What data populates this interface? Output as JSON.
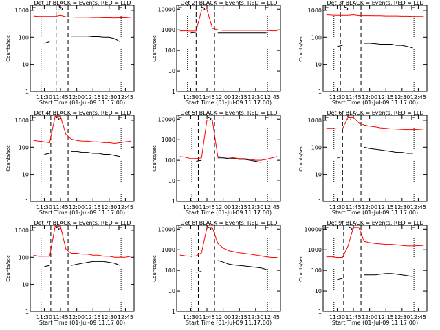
{
  "chart_data": [
    {
      "type": "line",
      "title": "Det 1f BLACK = Events, RED = LLD",
      "xlabel": "Start Time (01-Jul-09 11:17:00)",
      "ylabel": "Counts/sec",
      "log_y": true,
      "xlim": [
        "11:17",
        "12:53"
      ],
      "xticks": [
        "11:30",
        "11:45",
        "12:00",
        "12:15",
        "12:30",
        "12:45"
      ],
      "ylim": [
        1,
        1500
      ],
      "yticks": [
        1,
        10,
        100,
        1000
      ],
      "x": [
        "11:20",
        "11:25",
        "11:30",
        "11:35",
        "11:40",
        "11:45",
        "11:50",
        "11:55",
        "12:00",
        "12:05",
        "12:10",
        "12:15",
        "12:20",
        "12:25",
        "12:30",
        "12:35",
        "12:40",
        "12:45",
        "12:50"
      ],
      "series": [
        {
          "color": "#ff0000",
          "values": [
            620,
            600,
            600,
            600,
            600,
            650,
            580,
            570,
            560,
            560,
            560,
            550,
            550,
            540,
            540,
            530,
            540,
            540,
            560
          ]
        },
        {
          "color": "#000000",
          "values": [
            null,
            null,
            60,
            70,
            null,
            null,
            null,
            110,
            110,
            110,
            110,
            105,
            105,
            100,
            100,
            90,
            70,
            null,
            null
          ]
        }
      ],
      "dotted": [
        "11:27",
        "12:41"
      ],
      "dashed": [
        "11:41",
        "11:52"
      ],
      "annotations": [
        {
          "text": "E",
          "x": "11:18"
        },
        {
          "text": "S",
          "x": "11:43"
        },
        {
          "text": "E",
          "x": "12:38"
        }
      ]
    },
    {
      "type": "line",
      "title": "Det 2f BLACK = Events, RED = LLD",
      "xlabel": "Start Time (01-Jul-09 11:17:00)",
      "ylabel": "Counts/sec",
      "log_y": true,
      "xlim": [
        "11:17",
        "12:53"
      ],
      "xticks": [
        "11:30",
        "11:45",
        "12:00",
        "12:15",
        "12:30",
        "12:45"
      ],
      "ylim": [
        1,
        15000
      ],
      "yticks": [
        1,
        10,
        100,
        1000,
        10000
      ],
      "x": [
        "11:20",
        "11:25",
        "11:30",
        "11:35",
        "11:40",
        "11:45",
        "11:50",
        "11:55",
        "12:00",
        "12:05",
        "12:10",
        "12:15",
        "12:20",
        "12:25",
        "12:30",
        "12:35",
        "12:40",
        "12:45",
        "12:50"
      ],
      "series": [
        {
          "color": "#ff0000",
          "values": [
            900,
            900,
            880,
            880,
            9000,
            9500,
            1200,
            1000,
            950,
            950,
            950,
            950,
            950,
            950,
            950,
            950,
            950,
            900,
            900
          ]
        },
        {
          "color": "#000000",
          "values": [
            null,
            null,
            700,
            750,
            null,
            null,
            null,
            700,
            700,
            700,
            700,
            700,
            700,
            700,
            700,
            700,
            700,
            null,
            null
          ]
        }
      ],
      "dotted": [
        "11:27",
        "12:41"
      ],
      "dashed": [
        "11:35",
        "11:52"
      ],
      "annotations": [
        {
          "text": "E",
          "x": "11:18"
        },
        {
          "text": "S",
          "x": "11:39"
        },
        {
          "text": "E",
          "x": "12:38"
        }
      ]
    },
    {
      "type": "line",
      "title": "Det 3f BLACK = Events, RED = LLD",
      "xlabel": "Start Time (01-Jul-09 11:17:00)",
      "ylabel": "Counts/sec",
      "log_y": true,
      "xlim": [
        "11:17",
        "12:53"
      ],
      "xticks": [
        "11:30",
        "11:45",
        "12:00",
        "12:15",
        "12:30",
        "12:45"
      ],
      "ylim": [
        1,
        1500
      ],
      "yticks": [
        1,
        10,
        100,
        1000
      ],
      "x": [
        "11:20",
        "11:25",
        "11:30",
        "11:35",
        "11:40",
        "11:45",
        "11:50",
        "11:55",
        "12:00",
        "12:05",
        "12:10",
        "12:15",
        "12:20",
        "12:25",
        "12:30",
        "12:35",
        "12:40",
        "12:45",
        "12:50"
      ],
      "series": [
        {
          "color": "#ff0000",
          "values": [
            680,
            660,
            650,
            650,
            650,
            680,
            640,
            640,
            640,
            630,
            630,
            620,
            620,
            620,
            610,
            610,
            600,
            600,
            600
          ]
        },
        {
          "color": "#000000",
          "values": [
            null,
            null,
            45,
            50,
            null,
            null,
            null,
            60,
            60,
            58,
            55,
            55,
            55,
            50,
            50,
            45,
            40,
            null,
            null
          ]
        }
      ],
      "dotted": [
        "11:27",
        "12:41"
      ],
      "dashed": [
        "11:33",
        "11:52"
      ],
      "annotations": [
        {
          "text": "E",
          "x": "11:18"
        },
        {
          "text": "S",
          "x": "11:36"
        },
        {
          "text": "E",
          "x": "12:38"
        }
      ]
    },
    {
      "type": "line",
      "title": "Det 4f BLACK = Events, RED = LLD",
      "xlabel": "Start Time (01-Jul-09 11:17:00)",
      "ylabel": "Counts/sec",
      "log_y": true,
      "xlim": [
        "11:17",
        "12:53"
      ],
      "xticks": [
        "11:30",
        "11:45",
        "12:00",
        "12:15",
        "12:30",
        "12:45"
      ],
      "ylim": [
        1,
        1500
      ],
      "yticks": [
        1,
        10,
        100,
        1000
      ],
      "x": [
        "11:20",
        "11:25",
        "11:30",
        "11:35",
        "11:40",
        "11:45",
        "11:50",
        "11:55",
        "12:00",
        "12:05",
        "12:10",
        "12:15",
        "12:20",
        "12:25",
        "12:30",
        "12:35",
        "12:40",
        "12:45",
        "12:50"
      ],
      "series": [
        {
          "color": "#ff0000",
          "values": [
            180,
            170,
            160,
            150,
            1400,
            1400,
            300,
            200,
            180,
            170,
            170,
            160,
            160,
            150,
            150,
            140,
            150,
            160,
            170
          ]
        },
        {
          "color": "#000000",
          "values": [
            null,
            null,
            55,
            60,
            null,
            null,
            null,
            70,
            70,
            65,
            65,
            60,
            60,
            55,
            55,
            50,
            45,
            null,
            null
          ]
        }
      ],
      "dotted": [
        "11:27",
        "12:41"
      ],
      "dashed": [
        "11:36",
        "11:52"
      ],
      "annotations": [
        {
          "text": "E",
          "x": "11:18"
        },
        {
          "text": "S",
          "x": "11:40"
        },
        {
          "text": "E",
          "x": "12:38"
        }
      ]
    },
    {
      "type": "line",
      "title": "Det 5f BLACK = Events, RED = LLD",
      "xlabel": "Start Time (01-Jul-09 11:17:00)",
      "ylabel": "Counts/sec",
      "log_y": true,
      "xlim": [
        "11:17",
        "12:53"
      ],
      "xticks": [
        "11:30",
        "11:45",
        "12:00",
        "12:15",
        "12:30",
        "12:45"
      ],
      "ylim": [
        1,
        15000
      ],
      "yticks": [
        1,
        10,
        100,
        1000,
        10000
      ],
      "x": [
        "11:20",
        "11:25",
        "11:30",
        "11:35",
        "11:40",
        "11:45",
        "11:50",
        "11:55",
        "12:00",
        "12:05",
        "12:10",
        "12:15",
        "12:20",
        "12:25",
        "12:30",
        "12:35",
        "12:40",
        "12:45",
        "12:50"
      ],
      "series": [
        {
          "color": "#ff0000",
          "values": [
            150,
            140,
            120,
            120,
            130,
            9000,
            9000,
            150,
            140,
            140,
            130,
            120,
            120,
            110,
            100,
            100,
            110,
            130,
            150
          ]
        },
        {
          "color": "#000000",
          "values": [
            null,
            null,
            null,
            90,
            100,
            null,
            null,
            130,
            130,
            120,
            120,
            110,
            110,
            100,
            90,
            80,
            null,
            null,
            null
          ]
        }
      ],
      "dotted": [
        "11:31",
        "12:41"
      ],
      "dashed": [
        "11:37",
        "11:52"
      ],
      "annotations": [
        {
          "text": "E",
          "x": "11:18"
        },
        {
          "text": "S",
          "x": "11:45"
        },
        {
          "text": "E",
          "x": "12:38"
        }
      ]
    },
    {
      "type": "line",
      "title": "Det 6f BLACK = Events, RED = LLD",
      "xlabel": "Start Time (01-Jul-09 11:17:00)",
      "ylabel": "Counts/sec",
      "log_y": true,
      "xlim": [
        "11:17",
        "12:53"
      ],
      "xticks": [
        "11:30",
        "11:45",
        "12:00",
        "12:15",
        "12:30",
        "12:45"
      ],
      "ylim": [
        1,
        1500
      ],
      "yticks": [
        1,
        10,
        100,
        1000
      ],
      "x": [
        "11:20",
        "11:25",
        "11:30",
        "11:35",
        "11:40",
        "11:45",
        "11:50",
        "11:55",
        "12:00",
        "12:05",
        "12:10",
        "12:15",
        "12:20",
        "12:25",
        "12:30",
        "12:35",
        "12:40",
        "12:45",
        "12:50"
      ],
      "series": [
        {
          "color": "#ff0000",
          "values": [
            500,
            500,
            480,
            480,
            1300,
            1300,
            800,
            650,
            600,
            560,
            520,
            500,
            480,
            470,
            460,
            450,
            450,
            460,
            470
          ]
        },
        {
          "color": "#000000",
          "values": [
            null,
            null,
            40,
            45,
            null,
            null,
            null,
            100,
            90,
            85,
            80,
            75,
            70,
            65,
            65,
            60,
            60,
            null,
            null
          ]
        }
      ],
      "dotted": [
        "11:27",
        "12:41"
      ],
      "dashed": [
        "11:35",
        "11:52"
      ],
      "annotations": [
        {
          "text": "E",
          "x": "11:18"
        },
        {
          "text": "S",
          "x": "11:39"
        },
        {
          "text": "E",
          "x": "12:38"
        }
      ]
    },
    {
      "type": "line",
      "title": "Det 7f BLACK = Events, RED = LLD",
      "xlabel": "Start Time (01-Jul-09 11:17:00)",
      "ylabel": "Counts/sec",
      "log_y": true,
      "xlim": [
        "11:17",
        "12:53"
      ],
      "xticks": [
        "11:30",
        "11:45",
        "12:00",
        "12:15",
        "12:30",
        "12:45"
      ],
      "ylim": [
        1,
        1500
      ],
      "yticks": [
        1,
        10,
        100,
        1000
      ],
      "x": [
        "11:20",
        "11:25",
        "11:30",
        "11:35",
        "11:40",
        "11:45",
        "11:50",
        "11:55",
        "12:00",
        "12:05",
        "12:10",
        "12:15",
        "12:20",
        "12:25",
        "12:30",
        "12:35",
        "12:40",
        "12:45",
        "12:50"
      ],
      "series": [
        {
          "color": "#ff0000",
          "values": [
            120,
            110,
            110,
            110,
            1400,
            1400,
            200,
            140,
            140,
            130,
            130,
            120,
            120,
            110,
            110,
            100,
            100,
            100,
            110
          ]
        },
        {
          "color": "#000000",
          "values": [
            null,
            null,
            45,
            50,
            null,
            null,
            null,
            50,
            55,
            60,
            65,
            70,
            70,
            70,
            65,
            60,
            50,
            null,
            null
          ]
        }
      ],
      "dotted": [
        "11:27",
        "12:41"
      ],
      "dashed": [
        "11:36",
        "11:52"
      ],
      "annotations": [
        {
          "text": "E",
          "x": "11:18"
        },
        {
          "text": "S",
          "x": "11:40"
        },
        {
          "text": "E",
          "x": "12:38"
        }
      ]
    },
    {
      "type": "line",
      "title": "Det 8f BLACK = Events, RED = LLD",
      "xlabel": "Start Time (01-Jul-09 11:17:00)",
      "ylabel": "Counts/sec",
      "log_y": true,
      "xlim": [
        "11:17",
        "12:53"
      ],
      "xticks": [
        "11:30",
        "11:45",
        "12:00",
        "12:15",
        "12:30",
        "12:45"
      ],
      "ylim": [
        1,
        15000
      ],
      "yticks": [
        1,
        10,
        100,
        1000,
        10000
      ],
      "x": [
        "11:20",
        "11:25",
        "11:30",
        "11:35",
        "11:40",
        "11:45",
        "11:50",
        "11:55",
        "12:00",
        "12:05",
        "12:10",
        "12:15",
        "12:20",
        "12:25",
        "12:30",
        "12:35",
        "12:40",
        "12:45",
        "12:50"
      ],
      "series": [
        {
          "color": "#ff0000",
          "values": [
            550,
            500,
            480,
            500,
            700,
            12000,
            12000,
            2000,
            1200,
            900,
            800,
            700,
            650,
            600,
            550,
            500,
            450,
            420,
            420
          ]
        },
        {
          "color": "#000000",
          "values": [
            null,
            null,
            null,
            80,
            90,
            null,
            null,
            300,
            250,
            200,
            180,
            170,
            160,
            150,
            140,
            130,
            110,
            null,
            null
          ]
        }
      ],
      "dotted": [
        "11:31",
        "12:41"
      ],
      "dashed": [
        "11:37",
        "11:52"
      ],
      "annotations": [
        {
          "text": "E",
          "x": "11:18"
        },
        {
          "text": "S",
          "x": "11:45"
        },
        {
          "text": "E",
          "x": "12:38"
        }
      ]
    },
    {
      "type": "line",
      "title": "Det 9f BLACK = Events, RED = LLD",
      "xlabel": "Start Time (01-Jul-09 11:17:00)",
      "ylabel": "Counts/sec",
      "log_y": true,
      "xlim": [
        "11:17",
        "12:53"
      ],
      "xticks": [
        "11:30",
        "11:45",
        "12:00",
        "12:15",
        "12:30",
        "12:45"
      ],
      "ylim": [
        1,
        15000
      ],
      "yticks": [
        1,
        10,
        100,
        1000,
        10000
      ],
      "x": [
        "11:20",
        "11:25",
        "11:30",
        "11:35",
        "11:40",
        "11:45",
        "11:50",
        "11:55",
        "12:00",
        "12:05",
        "12:10",
        "12:15",
        "12:20",
        "12:25",
        "12:30",
        "12:35",
        "12:40",
        "12:45",
        "12:50"
      ],
      "series": [
        {
          "color": "#ff0000",
          "values": [
            450,
            450,
            420,
            420,
            1500,
            12000,
            12000,
            2500,
            2200,
            2000,
            1900,
            1800,
            1800,
            1700,
            1600,
            1500,
            1500,
            1550,
            1600
          ]
        },
        {
          "color": "#000000",
          "values": [
            null,
            null,
            35,
            40,
            null,
            null,
            null,
            60,
            60,
            60,
            65,
            70,
            70,
            65,
            60,
            55,
            50,
            null,
            null
          ]
        }
      ],
      "dotted": [
        "11:27",
        "12:41"
      ],
      "dashed": [
        "11:36",
        "11:52"
      ],
      "annotations": [
        {
          "text": "E",
          "x": "11:18"
        },
        {
          "text": "S",
          "x": "11:40"
        },
        {
          "text": "E",
          "x": "12:38"
        }
      ]
    }
  ]
}
